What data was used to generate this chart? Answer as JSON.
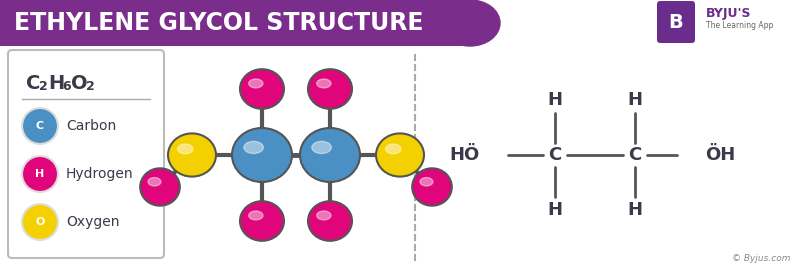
{
  "title": "ETHYLENE GLYCOL STRUCTURE",
  "title_bg": "#7B2D8B",
  "title_color": "#FFFFFF",
  "bg_color": "#FFFFFF",
  "carbon_color": "#4A90C4",
  "hydrogen_color": "#E0057A",
  "oxygen_color": "#F5D000",
  "bond_color": "#555555",
  "text_color": "#3a3a4a",
  "dashed_line_color": "#aaaaaa",
  "byju_purple": "#6B2D8B",
  "legend_items": [
    {
      "label": "Carbon",
      "color": "#4A90C4",
      "letter": "C"
    },
    {
      "label": "Hydrogen",
      "color": "#E0057A",
      "letter": "H"
    },
    {
      "label": "Oxygen",
      "color": "#F5D000",
      "letter": "O"
    }
  ]
}
